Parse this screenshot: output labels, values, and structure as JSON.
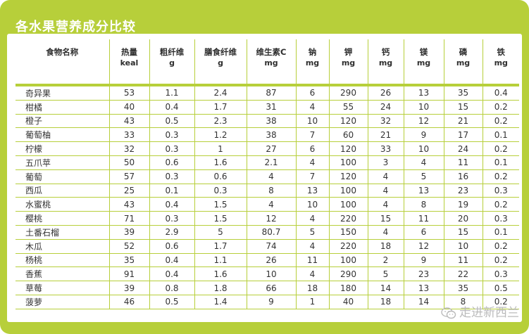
{
  "title": "各水果营养成分比较",
  "columns": [
    {
      "name": "食物名称",
      "unit": ""
    },
    {
      "name": "热量",
      "unit": "keal"
    },
    {
      "name": "粗纤维",
      "unit": "g"
    },
    {
      "name": "膳食纤维",
      "unit": "g"
    },
    {
      "name": "维生素C",
      "unit": "mg"
    },
    {
      "name": "钠",
      "unit": "mg"
    },
    {
      "name": "钾",
      "unit": "mg"
    },
    {
      "name": "钙",
      "unit": "mg"
    },
    {
      "name": "镁",
      "unit": "mg"
    },
    {
      "name": "磷",
      "unit": "mg"
    },
    {
      "name": "铁",
      "unit": "mg"
    }
  ],
  "rows": [
    [
      "奇异果",
      "53",
      "1.1",
      "2.4",
      "87",
      "6",
      "290",
      "26",
      "13",
      "35",
      "0.4"
    ],
    [
      "柑橘",
      "40",
      "0.4",
      "1.7",
      "31",
      "4",
      "55",
      "24",
      "10",
      "15",
      "0.2"
    ],
    [
      "橙子",
      "43",
      "0.5",
      "2.3",
      "38",
      "10",
      "120",
      "32",
      "12",
      "21",
      "0.2"
    ],
    [
      "葡萄柚",
      "33",
      "0.3",
      "1.2",
      "38",
      "7",
      "60",
      "21",
      "9",
      "17",
      "0.1"
    ],
    [
      "柠檬",
      "32",
      "0.3",
      "1",
      "27",
      "6",
      "120",
      "33",
      "10",
      "24",
      "0.2"
    ],
    [
      "五爪苹",
      "50",
      "0.6",
      "1.6",
      "2.1",
      "4",
      "100",
      "3",
      "4",
      "11",
      "0.1"
    ],
    [
      "葡萄",
      "57",
      "0.3",
      "0.6",
      "4",
      "7",
      "120",
      "4",
      "5",
      "16",
      "0.2"
    ],
    [
      "西瓜",
      "25",
      "0.1",
      "0.3",
      "8",
      "13",
      "100",
      "4",
      "13",
      "23",
      "0.3"
    ],
    [
      "水蜜桃",
      "43",
      "0.4",
      "1.5",
      "4",
      "10",
      "100",
      "4",
      "8",
      "19",
      "0.2"
    ],
    [
      "樱桃",
      "71",
      "0.3",
      "1.5",
      "12",
      "4",
      "220",
      "15",
      "11",
      "20",
      "0.3"
    ],
    [
      "土番石榴",
      "39",
      "2.9",
      "5",
      "80.7",
      "5",
      "150",
      "4",
      "6",
      "15",
      "0.1"
    ],
    [
      "木瓜",
      "52",
      "0.6",
      "1.7",
      "74",
      "4",
      "220",
      "18",
      "12",
      "10",
      "0.2"
    ],
    [
      "杨桃",
      "35",
      "0.4",
      "1.1",
      "26",
      "11",
      "100",
      "2",
      "9",
      "11",
      "0.2"
    ],
    [
      "香蕉",
      "91",
      "0.4",
      "1.6",
      "10",
      "4",
      "290",
      "5",
      "23",
      "22",
      "0.3"
    ],
    [
      "草莓",
      "39",
      "0.8",
      "1.8",
      "66",
      "18",
      "180",
      "14",
      "13",
      "35",
      "0.5"
    ],
    [
      "菠萝",
      "46",
      "0.5",
      "1.4",
      "9",
      "1",
      "40",
      "18",
      "14",
      "8",
      "0.2"
    ]
  ],
  "watermark": "走进新西兰",
  "colors": {
    "border": "#b7cf3a",
    "text": "#333333",
    "panel": "#ffffff"
  }
}
